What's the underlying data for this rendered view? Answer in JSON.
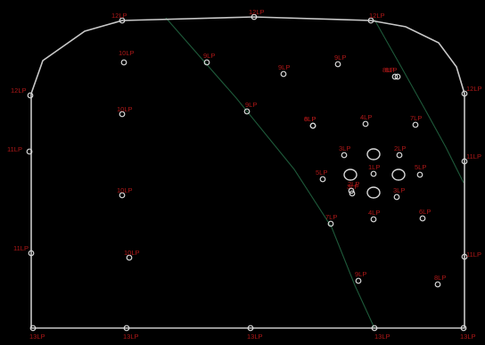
{
  "diagram": {
    "colors": {
      "background": "#000000",
      "outline": "#c8c8c8",
      "hole_label": "#b01818",
      "hole_marker": "#d8d8d8",
      "fault_line": "#1e5a3a"
    },
    "holes": [
      {
        "id": "perim-top-left-corner",
        "label": "12LP"
      },
      {
        "id": "perim-top-mid",
        "label": "12LP"
      },
      {
        "id": "perim-top-right",
        "label": "12LP"
      },
      {
        "id": "perim-left-upper",
        "label": "12LP"
      },
      {
        "id": "perim-right-upper",
        "label": "12LP"
      },
      {
        "id": "perim-left-mid",
        "label": "11LP"
      },
      {
        "id": "perim-right-mid",
        "label": "11LP"
      },
      {
        "id": "perim-left-lower",
        "label": "11LP"
      },
      {
        "id": "perim-right-lower",
        "label": "11LP"
      },
      {
        "id": "perim-bottom-left-corner",
        "label": "13LP"
      },
      {
        "id": "perim-bottom-left",
        "label": "13LP"
      },
      {
        "id": "perim-bottom-mid",
        "label": "13LP"
      },
      {
        "id": "perim-bottom-right",
        "label": "13LP"
      },
      {
        "id": "perim-bottom-right-corner",
        "label": "13LP"
      },
      {
        "id": "hole-10lp-a",
        "label": "10LP"
      },
      {
        "id": "hole-10lp-b",
        "label": "10LP"
      },
      {
        "id": "hole-10lp-c",
        "label": "10LP"
      },
      {
        "id": "hole-10lp-d",
        "label": "10LP"
      },
      {
        "id": "hole-9lp-a",
        "label": "9LP"
      },
      {
        "id": "hole-9lp-b",
        "label": "9LP"
      },
      {
        "id": "hole-9lp-c",
        "label": "9LP"
      },
      {
        "id": "hole-9lp-d",
        "label": "9LP"
      },
      {
        "id": "hole-9lp-e",
        "label": "9LP"
      },
      {
        "id": "hole-8lp-a",
        "label": "8LP"
      },
      {
        "id": "hole-8lp-b",
        "label": "8LP"
      },
      {
        "id": "hole-8lp-c",
        "label": "8LP"
      },
      {
        "id": "hole-8lp-d",
        "label": "8LP"
      },
      {
        "id": "hole-7lp-a",
        "label": "7LP"
      },
      {
        "id": "hole-7lp-b",
        "label": "7LP"
      },
      {
        "id": "hole-6lp-a",
        "label": "6LP"
      },
      {
        "id": "hole-6lp-b",
        "label": "6LP"
      },
      {
        "id": "hole-5lp-a",
        "label": "5LP"
      },
      {
        "id": "hole-5lp-b",
        "label": "5LP"
      },
      {
        "id": "hole-4lp-a",
        "label": "4LP"
      },
      {
        "id": "hole-4lp-b",
        "label": "4LP"
      },
      {
        "id": "hole-3lp-a",
        "label": "3LP"
      },
      {
        "id": "hole-3lp-b",
        "label": "3LP"
      },
      {
        "id": "hole-3lp-c",
        "label": "3LP"
      },
      {
        "id": "hole-2lp-a",
        "label": "2LP"
      },
      {
        "id": "hole-2lp-b",
        "label": "2LP"
      },
      {
        "id": "hole-1lp",
        "label": "1LP"
      }
    ]
  }
}
